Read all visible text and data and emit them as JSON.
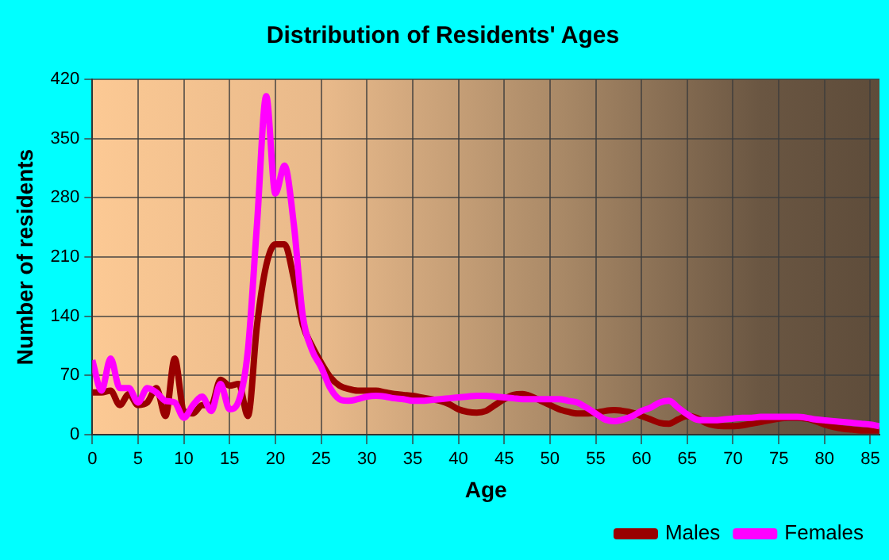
{
  "chart_data": {
    "type": "line",
    "title": "Distribution of Residents' Ages",
    "xlabel": "Age",
    "ylabel": "Number of residents",
    "x": [
      0,
      1,
      2,
      3,
      4,
      5,
      6,
      7,
      8,
      9,
      10,
      11,
      12,
      13,
      14,
      15,
      16,
      17,
      18,
      19,
      20,
      21,
      22,
      23,
      24,
      25,
      26,
      27,
      28,
      29,
      30,
      31,
      32,
      33,
      34,
      35,
      36,
      37,
      38,
      39,
      40,
      41,
      42,
      43,
      44,
      45,
      46,
      47,
      48,
      49,
      50,
      51,
      52,
      53,
      54,
      55,
      56,
      57,
      58,
      59,
      60,
      61,
      62,
      63,
      64,
      65,
      66,
      67,
      68,
      69,
      70,
      71,
      72,
      73,
      74,
      75,
      76,
      77,
      78,
      79,
      80,
      81,
      82,
      83,
      84,
      85,
      86
    ],
    "series": [
      {
        "name": "Males",
        "color": "#990000",
        "values": [
          50,
          50,
          52,
          35,
          48,
          35,
          38,
          55,
          22,
          90,
          28,
          25,
          35,
          35,
          65,
          58,
          60,
          22,
          130,
          200,
          225,
          225,
          185,
          130,
          105,
          85,
          68,
          58,
          54,
          52,
          52,
          52,
          50,
          48,
          47,
          46,
          44,
          42,
          40,
          36,
          30,
          27,
          26,
          28,
          35,
          42,
          47,
          48,
          45,
          40,
          35,
          30,
          27,
          25,
          25,
          26,
          28,
          29,
          28,
          26,
          22,
          18,
          14,
          13,
          18,
          22,
          20,
          14,
          11,
          10,
          10,
          11,
          13,
          15,
          17,
          19,
          20,
          20,
          19,
          16,
          12,
          9,
          7,
          6,
          5,
          5,
          5
        ]
      },
      {
        "name": "Females",
        "color": "#ff00ff",
        "values": [
          88,
          52,
          90,
          55,
          55,
          38,
          55,
          50,
          40,
          38,
          20,
          35,
          45,
          28,
          60,
          30,
          40,
          100,
          250,
          400,
          285,
          318,
          250,
          140,
          100,
          80,
          55,
          42,
          40,
          42,
          45,
          46,
          45,
          43,
          42,
          40,
          40,
          41,
          42,
          43,
          44,
          45,
          46,
          46,
          45,
          44,
          43,
          42,
          42,
          42,
          42,
          42,
          40,
          38,
          32,
          25,
          18,
          16,
          18,
          22,
          28,
          32,
          38,
          40,
          32,
          24,
          18,
          17,
          17,
          18,
          19,
          20,
          20,
          21,
          21,
          21,
          21,
          21,
          20,
          18,
          17,
          16,
          15,
          14,
          13,
          12,
          10
        ]
      }
    ],
    "xlim": [
      0,
      86
    ],
    "xticks": [
      0,
      5,
      10,
      15,
      20,
      25,
      30,
      35,
      40,
      45,
      50,
      55,
      60,
      65,
      70,
      75,
      80,
      85
    ],
    "ylim": [
      0,
      420
    ],
    "yticks": [
      0,
      70,
      140,
      210,
      280,
      350,
      420
    ],
    "grid": true,
    "legend": "bottom right",
    "line_style": "solid",
    "marker": "none"
  }
}
